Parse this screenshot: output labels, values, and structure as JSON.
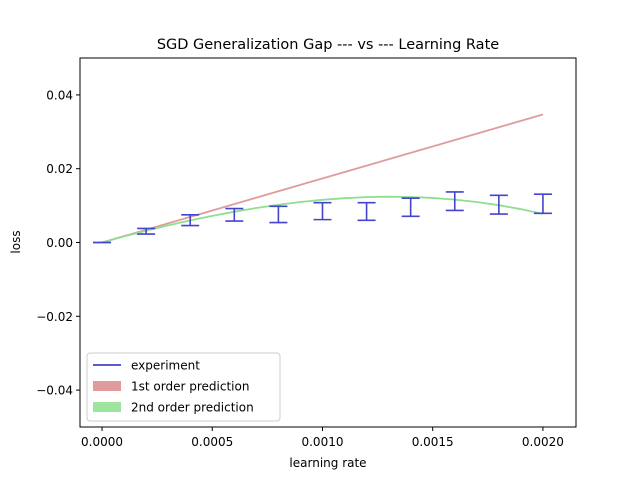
{
  "chart_data": {
    "type": "line",
    "title": "SGD Generalization Gap --- vs --- Learning Rate",
    "xlabel": "learning rate",
    "ylabel": "loss",
    "xlim": [
      -0.0001,
      0.00215
    ],
    "ylim": [
      -0.05,
      0.05
    ],
    "xticks": [
      0.0,
      0.0005,
      0.001,
      0.0015,
      0.002
    ],
    "xtick_labels": [
      "0.0000",
      "0.0005",
      "0.0010",
      "0.0015",
      "0.0020"
    ],
    "yticks": [
      -0.04,
      -0.02,
      0.0,
      0.02,
      0.04
    ],
    "ytick_labels": [
      "−0.04",
      "−0.02",
      "0.00",
      "0.02",
      "0.04"
    ],
    "grid": false,
    "legend_position": "lower-left",
    "legend": [
      {
        "label": "experiment",
        "kind": "line",
        "color": "#4444cc"
      },
      {
        "label": "1st order prediction",
        "kind": "patch",
        "color": "#e09c9c"
      },
      {
        "label": "2nd order prediction",
        "kind": "patch",
        "color": "#9ee39e"
      }
    ],
    "series": [
      {
        "name": "1st order prediction",
        "color": "#e09c9c",
        "x": [
          0.0,
          0.002
        ],
        "y": [
          0.0,
          0.0347
        ]
      },
      {
        "name": "2nd order prediction",
        "color": "#8fdf8f",
        "x": [
          0.0,
          0.0001,
          0.0002,
          0.0003,
          0.0004,
          0.0005,
          0.0006,
          0.0007,
          0.0008,
          0.0009,
          0.001,
          0.0011,
          0.0012,
          0.0013,
          0.0014,
          0.0015,
          0.0016,
          0.0017,
          0.0018,
          0.0019,
          0.002
        ],
        "y": [
          0.0,
          0.00165,
          0.0032,
          0.00465,
          0.006,
          0.00723,
          0.00835,
          0.00935,
          0.01023,
          0.01097,
          0.01157,
          0.01201,
          0.0123,
          0.01241,
          0.01234,
          0.01208,
          0.01163,
          0.01097,
          0.01011,
          0.00903,
          0.00775
        ]
      },
      {
        "name": "experiment",
        "color": "#4444cc",
        "x": [
          0.0,
          0.0002,
          0.0004,
          0.0006,
          0.0008,
          0.001,
          0.0012,
          0.0014,
          0.0016,
          0.0018,
          0.002
        ],
        "low": [
          0.0,
          0.0023,
          0.0046,
          0.0058,
          0.0054,
          0.0062,
          0.006,
          0.0071,
          0.0087,
          0.0077,
          0.0079
        ],
        "high": [
          0.0,
          0.0038,
          0.0075,
          0.0092,
          0.0098,
          0.0108,
          0.0108,
          0.012,
          0.0137,
          0.0128,
          0.0131
        ]
      }
    ]
  }
}
